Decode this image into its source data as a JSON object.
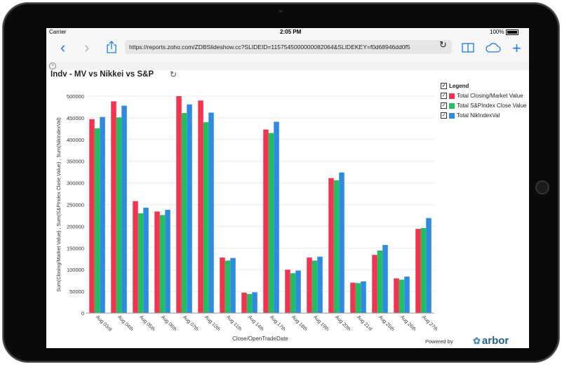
{
  "status_bar": {
    "carrier": "Carrier",
    "time": "2:05 PM",
    "battery": "100%"
  },
  "browser": {
    "url": "https://reports.zoho.com/ZDBSlideshow.cc?SLIDEID=1157545000000082064&SLIDEKEY=f0d68946dd0f5"
  },
  "report": {
    "title": "Indv - MV vs Nikkei vs S&P"
  },
  "footer": {
    "powered_by": "Powered by",
    "logo_text": "arbor"
  },
  "colors": {
    "closing": "#f2344e",
    "sp": "#20c060",
    "nik": "#2f8be0"
  },
  "chart_data": {
    "type": "bar",
    "xlabel": "Close/OpenTradeDate",
    "ylabel": "Sum(Closing/Market Value) , Sum(S&PIndex Close Value) , Sum(NikIndexVal)",
    "ylim": [
      0,
      500000
    ],
    "yticks": [
      "0",
      "50000",
      "100000",
      "150000",
      "200000",
      "250000",
      "300000",
      "350000",
      "400000",
      "450000",
      "500000"
    ],
    "legend_title": "Legend",
    "legend_position": "top-right",
    "grid": true,
    "categories": [
      "Aug 03rd",
      "Aug 04th",
      "Aug 05th",
      "Aug 06th",
      "Aug 07th",
      "Aug 10th",
      "Aug 11th",
      "Aug 14th",
      "Aug 17th",
      "Aug 18th",
      "Aug 19th",
      "Aug 20th",
      "Aug 21st",
      "Aug 25th",
      "Aug 26th",
      "Aug 27th"
    ],
    "series": [
      {
        "name": "Total Closing/Market Value",
        "color": "#f2344e",
        "values": [
          447000,
          488000,
          258000,
          234000,
          500000,
          490000,
          128000,
          47000,
          423000,
          100000,
          128000,
          311000,
          70000,
          134000,
          80000,
          194000
        ]
      },
      {
        "name": "Total S&PIndex Close Value",
        "color": "#20c060",
        "values": [
          426000,
          451000,
          230000,
          226000,
          461000,
          440000,
          121000,
          44000,
          415000,
          92000,
          121000,
          306000,
          69000,
          144000,
          77000,
          196000
        ]
      },
      {
        "name": "Total NikIndexVal",
        "color": "#2f8be0",
        "values": [
          452000,
          478000,
          243000,
          238000,
          481000,
          462000,
          127000,
          48000,
          441000,
          98000,
          130000,
          324000,
          73000,
          157000,
          84000,
          219000
        ]
      }
    ]
  }
}
